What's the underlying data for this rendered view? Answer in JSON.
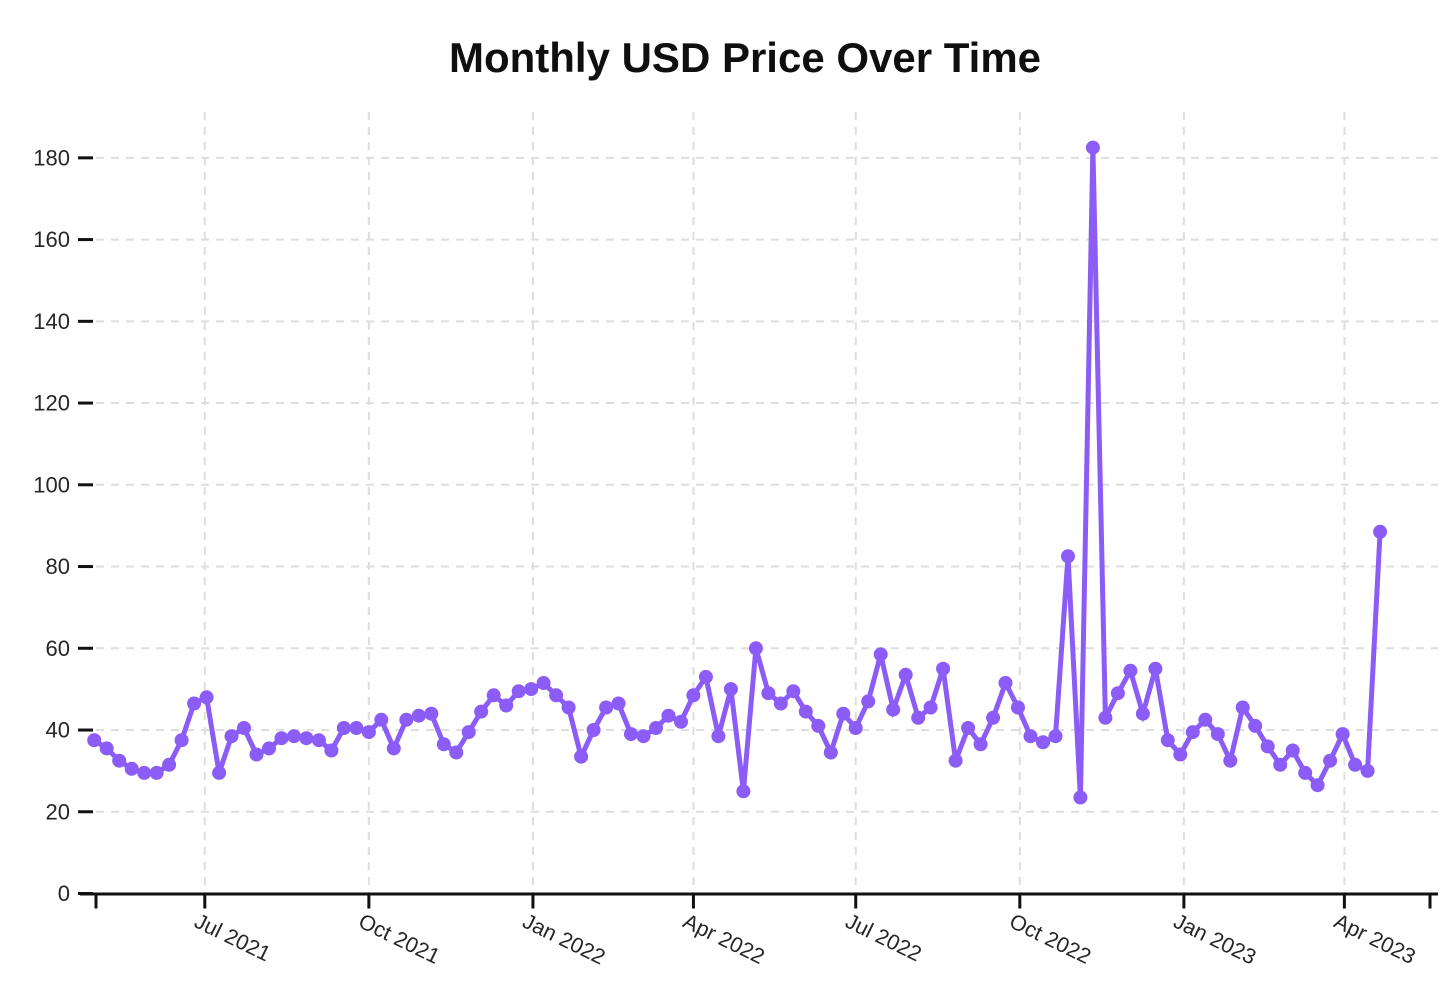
{
  "page": {
    "background": "#ffffff"
  },
  "chart_data": {
    "type": "line",
    "title": "Monthly USD Price Over Time",
    "xlabel": "",
    "ylabel": "",
    "legend": "none",
    "grid": true,
    "line_color": "#8B5CF6",
    "marker_color": "#8B5CF6",
    "grid_color": "#dedede",
    "axis_color": "#111111",
    "label_color": "#262626",
    "title_color": "#0f0f0f",
    "ylim": [
      0,
      195
    ],
    "x_domain": [
      "2021-05-01",
      "2023-05-19"
    ],
    "y_ticks": [
      0,
      20,
      40,
      60,
      80,
      100,
      120,
      140,
      160,
      180
    ],
    "x_tick_labels": [
      {
        "date": "2021-07-01",
        "label": "Jul 2021"
      },
      {
        "date": "2021-10-01",
        "label": "Oct 2021"
      },
      {
        "date": "2022-01-01",
        "label": "Jan 2022"
      },
      {
        "date": "2022-04-01",
        "label": "Apr 2022"
      },
      {
        "date": "2022-07-01",
        "label": "Jul 2022"
      },
      {
        "date": "2022-10-01",
        "label": "Oct 2022"
      },
      {
        "date": "2023-01-01",
        "label": "Jan 2023"
      },
      {
        "date": "2023-04-01",
        "label": "Apr 2023"
      }
    ],
    "series": [
      {
        "name": "USD Price",
        "x": [
          "2021-04-30",
          "2021-05-07",
          "2021-05-14",
          "2021-05-21",
          "2021-05-28",
          "2021-06-04",
          "2021-06-11",
          "2021-06-18",
          "2021-06-25",
          "2021-07-02",
          "2021-07-09",
          "2021-07-16",
          "2021-07-23",
          "2021-07-30",
          "2021-08-06",
          "2021-08-13",
          "2021-08-20",
          "2021-08-27",
          "2021-09-03",
          "2021-09-10",
          "2021-09-17",
          "2021-09-24",
          "2021-10-01",
          "2021-10-08",
          "2021-10-15",
          "2021-10-22",
          "2021-10-29",
          "2021-11-05",
          "2021-11-12",
          "2021-11-19",
          "2021-11-26",
          "2021-12-03",
          "2021-12-10",
          "2021-12-17",
          "2021-12-24",
          "2021-12-31",
          "2022-01-07",
          "2022-01-14",
          "2022-01-21",
          "2022-01-28",
          "2022-02-04",
          "2022-02-11",
          "2022-02-18",
          "2022-02-25",
          "2022-03-04",
          "2022-03-11",
          "2022-03-18",
          "2022-03-25",
          "2022-04-01",
          "2022-04-08",
          "2022-04-15",
          "2022-04-22",
          "2022-04-29",
          "2022-05-06",
          "2022-05-13",
          "2022-05-20",
          "2022-05-27",
          "2022-06-03",
          "2022-06-10",
          "2022-06-17",
          "2022-06-24",
          "2022-07-01",
          "2022-07-08",
          "2022-07-15",
          "2022-07-22",
          "2022-07-29",
          "2022-08-05",
          "2022-08-12",
          "2022-08-19",
          "2022-08-26",
          "2022-09-02",
          "2022-09-09",
          "2022-09-16",
          "2022-09-23",
          "2022-09-30",
          "2022-10-07",
          "2022-10-14",
          "2022-10-21",
          "2022-10-28",
          "2022-11-04",
          "2022-11-11",
          "2022-11-18",
          "2022-11-25",
          "2022-12-02",
          "2022-12-09",
          "2022-12-16",
          "2022-12-23",
          "2022-12-30",
          "2023-01-06",
          "2023-01-13",
          "2023-01-20",
          "2023-01-27",
          "2023-02-03",
          "2023-02-10",
          "2023-02-17",
          "2023-02-24",
          "2023-03-03",
          "2023-03-10",
          "2023-03-17",
          "2023-03-24",
          "2023-03-31",
          "2023-04-07",
          "2023-04-14",
          "2023-04-21"
        ],
        "values": [
          37.5,
          35.5,
          32.5,
          30.5,
          29.5,
          29.5,
          31.5,
          37.5,
          46.5,
          48,
          29.5,
          38.5,
          40.5,
          34,
          35.5,
          38,
          38.5,
          38,
          37.5,
          35,
          40.5,
          40.5,
          39.5,
          42.5,
          35.5,
          42.5,
          43.5,
          44,
          36.5,
          34.5,
          39.5,
          44.5,
          48.5,
          46,
          49.5,
          50,
          51.5,
          48.5,
          45.5,
          33.5,
          40,
          45.5,
          46.5,
          39,
          38.5,
          40.5,
          43.5,
          42,
          48.5,
          53,
          38.5,
          50,
          25,
          60,
          49,
          46.5,
          49.5,
          44.5,
          41,
          34.5,
          44,
          40.5,
          47,
          58.5,
          45,
          53.5,
          43,
          45.5,
          55,
          32.5,
          40.5,
          36.5,
          43,
          51.5,
          45.5,
          38.5,
          37,
          38.5,
          82.5,
          23.5,
          182.5,
          43,
          49,
          54.5,
          44,
          55,
          37.5,
          34,
          39.5,
          42.5,
          39,
          32.5,
          45.5,
          41,
          36,
          31.5,
          35,
          29.5,
          26.5,
          32.5,
          39,
          31.5,
          30,
          88.5
        ]
      }
    ]
  }
}
